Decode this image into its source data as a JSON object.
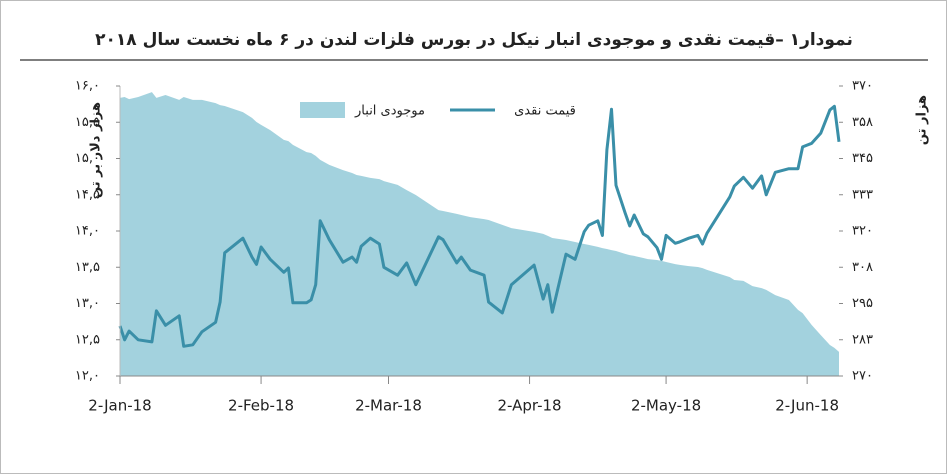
{
  "chart_data": {
    "type": "line",
    "title": "نمودار۱ –قیمت نقدی و موجودی انبار نیکل در بورس فلزات لندن در ۶ ماه نخست سال ۲۰۱۸",
    "y_label": "هزار دلار بر تن",
    "y2_label": "هزار تن",
    "x": [
      "2018-01-02",
      "2018-01-03",
      "2018-01-04",
      "2018-01-06",
      "2018-01-09",
      "2018-01-10",
      "2018-01-12",
      "2018-01-15",
      "2018-01-16",
      "2018-01-18",
      "2018-01-20",
      "2018-01-23",
      "2018-01-24",
      "2018-01-25",
      "2018-01-29",
      "2018-01-31",
      "2018-02-01",
      "2018-02-02",
      "2018-02-04",
      "2018-02-07",
      "2018-02-08",
      "2018-02-09",
      "2018-02-12",
      "2018-02-13",
      "2018-02-14",
      "2018-02-15",
      "2018-02-17",
      "2018-02-20",
      "2018-02-22",
      "2018-02-23",
      "2018-02-24",
      "2018-02-26",
      "2018-02-28",
      "2018-03-01",
      "2018-03-04",
      "2018-03-06",
      "2018-03-08",
      "2018-03-13",
      "2018-03-14",
      "2018-03-17",
      "2018-03-18",
      "2018-03-20",
      "2018-03-23",
      "2018-03-24",
      "2018-03-27",
      "2018-03-29",
      "2018-04-03",
      "2018-04-05",
      "2018-04-06",
      "2018-04-07",
      "2018-04-10",
      "2018-04-12",
      "2018-04-14",
      "2018-04-15",
      "2018-04-17",
      "2018-04-18",
      "2018-04-19",
      "2018-04-20",
      "2018-04-21",
      "2018-04-23",
      "2018-04-24",
      "2018-04-25",
      "2018-04-27",
      "2018-04-28",
      "2018-04-30",
      "2018-05-01",
      "2018-05-02",
      "2018-05-04",
      "2018-05-05",
      "2018-05-07",
      "2018-05-09",
      "2018-05-10",
      "2018-05-11",
      "2018-05-16",
      "2018-05-17",
      "2018-05-19",
      "2018-05-21",
      "2018-05-23",
      "2018-05-24",
      "2018-05-26",
      "2018-05-29",
      "2018-05-31",
      "2018-06-01",
      "2018-06-03",
      "2018-06-05",
      "2018-06-07",
      "2018-06-08",
      "2018-06-09"
    ],
    "series": [
      {
        "name": "موجودی انبار",
        "kind": "area",
        "axis": "y2",
        "color": "#a3d2de",
        "values": [
          365.9,
          366.2,
          365.5,
          366.2,
          367.9,
          365.9,
          366.9,
          365.2,
          366.2,
          365.2,
          365.2,
          364.1,
          363.4,
          363.1,
          361.0,
          359.0,
          357.6,
          356.6,
          354.8,
          351.4,
          351.0,
          349.7,
          347.2,
          346.9,
          345.9,
          344.5,
          342.8,
          341.0,
          340.0,
          339.3,
          339.0,
          338.3,
          337.9,
          337.2,
          335.9,
          334.1,
          332.4,
          327.2,
          326.9,
          325.9,
          325.5,
          324.8,
          324.1,
          323.8,
          322.1,
          321.0,
          319.7,
          319.0,
          318.3,
          317.6,
          316.9,
          316.2,
          315.5,
          315.2,
          314.5,
          314.1,
          313.8,
          313.4,
          313.1,
          312.1,
          311.7,
          311.4,
          310.7,
          310.3,
          310.0,
          309.7,
          309.3,
          308.6,
          308.3,
          307.9,
          307.6,
          307.2,
          306.6,
          304.1,
          303.1,
          302.8,
          301.0,
          300.3,
          299.7,
          297.9,
          296.2,
          292.8,
          291.7,
          287.6,
          284.1,
          280.7,
          279.7,
          278.3
        ]
      },
      {
        "name": "قیمت نقدی",
        "kind": "line",
        "axis": "y",
        "color": "#3a8fa8",
        "values": [
          12.69,
          12.5,
          12.62,
          12.5,
          12.47,
          12.9,
          12.7,
          12.83,
          12.41,
          12.43,
          12.61,
          12.74,
          13.02,
          13.7,
          13.9,
          13.64,
          13.54,
          13.78,
          13.61,
          13.43,
          13.49,
          13.01,
          13.01,
          13.05,
          13.26,
          14.14,
          13.88,
          13.57,
          13.64,
          13.57,
          13.79,
          13.9,
          13.82,
          13.5,
          13.39,
          13.56,
          13.26,
          13.92,
          13.88,
          13.56,
          13.64,
          13.46,
          13.39,
          13.02,
          12.87,
          13.26,
          13.53,
          13.06,
          13.26,
          12.88,
          13.68,
          13.61,
          13.99,
          14.08,
          14.14,
          13.94,
          15.12,
          15.68,
          14.63,
          14.25,
          14.07,
          14.22,
          13.96,
          13.92,
          13.77,
          13.61,
          13.94,
          13.83,
          13.85,
          13.9,
          13.94,
          13.82,
          13.97,
          14.47,
          14.62,
          14.74,
          14.59,
          14.76,
          14.5,
          14.81,
          14.86,
          14.86,
          15.16,
          15.21,
          15.35,
          15.67,
          15.72,
          15.23
        ]
      }
    ],
    "xlim": [
      "2018-01-02",
      "2018-06-09"
    ],
    "xticks": [
      {
        "value": "2018-01-02",
        "label": "2-Jan-18"
      },
      {
        "value": "2018-02-02",
        "label": "2-Feb-18"
      },
      {
        "value": "2018-03-02",
        "label": "2-Mar-18"
      },
      {
        "value": "2018-04-02",
        "label": "2-Apr-18"
      },
      {
        "value": "2018-05-02",
        "label": "2-May-18"
      },
      {
        "value": "2018-06-02",
        "label": "2-Jun-18"
      }
    ],
    "ylim": [
      12,
      16
    ],
    "yticks": [
      {
        "value": 12,
        "label": "۱۲,۰"
      },
      {
        "value": 12.5,
        "label": "۱۲,۵"
      },
      {
        "value": 13,
        "label": "۱۳,۰"
      },
      {
        "value": 13.5,
        "label": "۱۳,۵"
      },
      {
        "value": 14,
        "label": "۱۴,۰"
      },
      {
        "value": 14.5,
        "label": "۱۴,۵"
      },
      {
        "value": 15,
        "label": "۱۵,۰"
      },
      {
        "value": 15.5,
        "label": "۱۵,۵"
      },
      {
        "value": 16,
        "label": "۱۶,۰"
      }
    ],
    "y2lim": [
      270,
      370
    ],
    "y2ticks": [
      {
        "value": 270,
        "label": "۲۷۰"
      },
      {
        "value": 282.5,
        "label": "۲۸۳"
      },
      {
        "value": 295,
        "label": "۲۹۵"
      },
      {
        "value": 307.5,
        "label": "۳۰۸"
      },
      {
        "value": 320,
        "label": "۳۲۰"
      },
      {
        "value": 332.5,
        "label": "۳۳۳"
      },
      {
        "value": 345,
        "label": "۳۴۵"
      },
      {
        "value": 357.5,
        "label": "۳۵۸"
      },
      {
        "value": 370,
        "label": "۳۷۰"
      }
    ],
    "grid": false,
    "legend": "top"
  }
}
